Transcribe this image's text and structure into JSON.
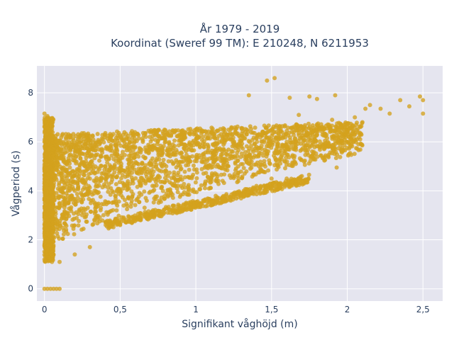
{
  "chart_data": {
    "type": "scatter",
    "title_line1": "År 1979 - 2019",
    "title_line2": "Koordinat (Sweref 99 TM): E 210248, N 6211953",
    "xlabel": "Signifikant våghöjd (m)",
    "ylabel": "Vågperiod (s)",
    "xlim": [
      -0.05,
      2.63
    ],
    "ylim": [
      -0.5,
      9.1
    ],
    "x_ticks": [
      0,
      0.5,
      1,
      1.5,
      2,
      2.5
    ],
    "x_tick_labels": [
      "0",
      "0,5",
      "1",
      "1,5",
      "2",
      "2,5"
    ],
    "y_ticks": [
      0,
      2,
      4,
      6,
      8
    ],
    "y_tick_labels": [
      "0",
      "2",
      "4",
      "6",
      "8"
    ],
    "grid": true,
    "legend": "none",
    "marker_color": "#d4a21e",
    "plot_bg": "#e5e5ef",
    "series": [
      {
        "points": [
          [
            0.0,
            0.0
          ],
          [
            0.02,
            0.0
          ],
          [
            0.04,
            0.0
          ],
          [
            0.06,
            0.0
          ],
          [
            0.08,
            0.0
          ],
          [
            0.1,
            0.0
          ],
          [
            0.0,
            7.15
          ],
          [
            0.02,
            7.05
          ],
          [
            0.01,
            6.6
          ],
          [
            0.03,
            6.4
          ],
          [
            0.05,
            6.2
          ],
          [
            0.0,
            1.2
          ],
          [
            0.05,
            1.1
          ],
          [
            0.1,
            1.1
          ],
          [
            0.2,
            1.4
          ],
          [
            0.3,
            1.7
          ],
          [
            0.05,
            3.0
          ],
          [
            0.1,
            3.5
          ],
          [
            0.2,
            4.0
          ],
          [
            0.3,
            4.5
          ],
          [
            0.4,
            5.0
          ],
          [
            0.5,
            5.2
          ],
          [
            0.6,
            5.5
          ],
          [
            0.7,
            5.8
          ],
          [
            0.8,
            6.0
          ],
          [
            0.9,
            6.2
          ],
          [
            1.0,
            6.3
          ],
          [
            0.5,
            2.6
          ],
          [
            0.7,
            3.0
          ],
          [
            1.0,
            3.5
          ],
          [
            1.2,
            3.8
          ],
          [
            1.4,
            4.2
          ],
          [
            1.5,
            4.5
          ],
          [
            1.6,
            4.5
          ],
          [
            1.7,
            4.6
          ],
          [
            1.2,
            5.5
          ],
          [
            1.4,
            5.8
          ],
          [
            1.6,
            6.0
          ],
          [
            1.8,
            6.3
          ],
          [
            2.0,
            6.7
          ],
          [
            2.1,
            6.8
          ],
          [
            1.7,
            6.6
          ],
          [
            1.9,
            6.9
          ],
          [
            1.52,
            8.6
          ],
          [
            1.47,
            8.5
          ],
          [
            1.35,
            7.9
          ],
          [
            1.62,
            7.8
          ],
          [
            1.75,
            7.85
          ],
          [
            1.92,
            7.9
          ],
          [
            1.8,
            7.75
          ],
          [
            2.12,
            7.35
          ],
          [
            2.15,
            7.5
          ],
          [
            2.35,
            7.7
          ],
          [
            2.48,
            7.85
          ],
          [
            2.5,
            7.7
          ],
          [
            2.41,
            7.45
          ],
          [
            2.5,
            7.15
          ],
          [
            2.22,
            7.35
          ],
          [
            2.28,
            7.15
          ],
          [
            1.93,
            4.95
          ],
          [
            1.68,
            7.1
          ],
          [
            2.05,
            7.0
          ],
          [
            0.0,
            6.9
          ]
        ]
      }
    ]
  }
}
